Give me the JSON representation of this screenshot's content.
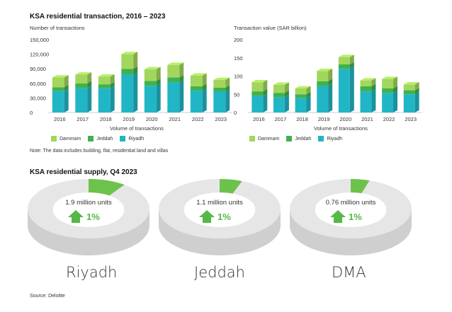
{
  "transactions_title": "KSA residential transaction, 2016 – 2023",
  "supply_title": "KSA residential supply, Q4 2023",
  "note": "Note: The data includes building, flat, residential land and villas",
  "source": "Source: Deloitte",
  "colors": {
    "dammam": "#a3d65c",
    "jeddah": "#3fb24f",
    "riyadh": "#21b6c6",
    "ring": "#e6e6e6",
    "slice": "#6cc24a",
    "arrow": "#55b847"
  },
  "chart_data": [
    {
      "type": "bar",
      "stacked": true,
      "title": "Number of transactions",
      "xlabel": "Volume of transactions",
      "ylabel": "Number of transactions",
      "ylim": [
        0,
        150000
      ],
      "yticks": [
        "0",
        "30,000",
        "60,000",
        "90,000",
        "120,000",
        "150,000"
      ],
      "ytick_values": [
        0,
        30000,
        60000,
        90000,
        120000,
        150000
      ],
      "categories": [
        "2016",
        "2017",
        "2018",
        "2019",
        "2020",
        "2021",
        "2022",
        "2023"
      ],
      "series": [
        {
          "name": "Riyadh",
          "values": [
            44000,
            50000,
            50000,
            78000,
            55000,
            62000,
            45000,
            43000
          ]
        },
        {
          "name": "Jeddah",
          "values": [
            8000,
            10000,
            8000,
            12000,
            10000,
            10000,
            9000,
            8000
          ]
        },
        {
          "name": "Dammam",
          "values": [
            20000,
            18000,
            16000,
            30000,
            24000,
            26000,
            22000,
            16000
          ]
        }
      ],
      "legend": [
        "Dammam",
        "Jeddah",
        "Riyadh"
      ]
    },
    {
      "type": "bar",
      "stacked": true,
      "title": "Transaction value (SAR billion)",
      "xlabel": "Volume of transactions",
      "ylabel": "Transaction value (SAR billion)",
      "ylim": [
        0,
        200
      ],
      "yticks": [
        "0",
        "50",
        "100",
        "150",
        "200"
      ],
      "ytick_values": [
        0,
        50,
        100,
        150,
        200
      ],
      "categories": [
        "2016",
        "2017",
        "2018",
        "2019",
        "2020",
        "2021",
        "2022",
        "2023"
      ],
      "series": [
        {
          "name": "Riyadh",
          "values": [
            45,
            42,
            40,
            72,
            120,
            58,
            53,
            50
          ]
        },
        {
          "name": "Jeddah",
          "values": [
            13,
            12,
            10,
            14,
            12,
            14,
            13,
            11
          ]
        },
        {
          "name": "Dammam",
          "values": [
            25,
            22,
            16,
            28,
            20,
            16,
            26,
            16
          ]
        }
      ],
      "legend": [
        "Dammam",
        "Jeddah",
        "Riyadh"
      ]
    },
    {
      "type": "pie",
      "title": "KSA residential supply, Q4 2023",
      "items": [
        {
          "city": "Riyadh",
          "units": "1.9 million units",
          "change": "1%",
          "slice_share": 0.1
        },
        {
          "city": "Jeddah",
          "units": "1.1 million units",
          "change": "1%",
          "slice_share": 0.06
        },
        {
          "city": "DMA",
          "units": "0.76 million units",
          "change": "1%",
          "slice_share": 0.05
        }
      ]
    }
  ]
}
